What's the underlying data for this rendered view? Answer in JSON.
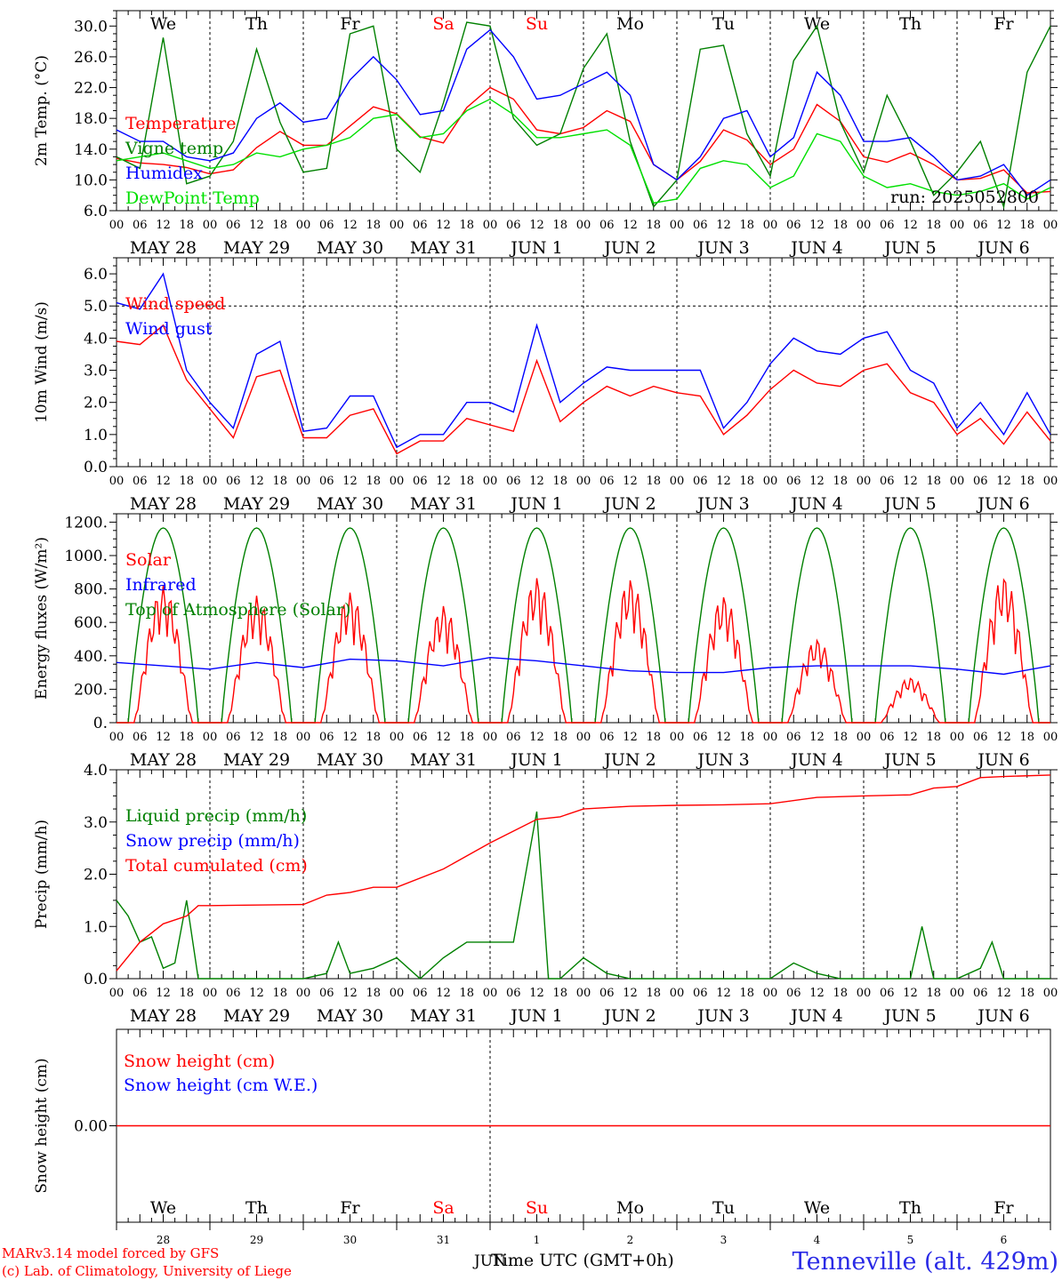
{
  "figure": {
    "location": "Tenneville (alt. 429m)",
    "footer_lines": [
      "MARv3.14 model forced by GFS",
      "(c) Lab. of Climatology, University of Liege"
    ],
    "xaxis_title": "Time UTC (GMT+0h)",
    "bottom_month": "JUN",
    "bottom_day_numbers": [
      "28",
      "29",
      "30",
      "31",
      "1",
      "2",
      "3",
      "4",
      "5",
      "6"
    ],
    "hour_ticks": [
      "00",
      "06",
      "12",
      "18"
    ],
    "end_tick": "00",
    "date_labels": [
      "MAY 28",
      "MAY 29",
      "MAY 30",
      "MAY 31",
      "JUN  1",
      "JUN  2",
      "JUN  3",
      "JUN  4",
      "JUN  5",
      "JUN  6"
    ],
    "weekday_labels": [
      {
        "label": "We",
        "color": "#000000"
      },
      {
        "label": "Th",
        "color": "#000000"
      },
      {
        "label": "Fr",
        "color": "#000000"
      },
      {
        "label": "Sa",
        "color": "#ff0000"
      },
      {
        "label": "Su",
        "color": "#ff0000"
      },
      {
        "label": "Mo",
        "color": "#000000"
      },
      {
        "label": "Tu",
        "color": "#000000"
      },
      {
        "label": "We",
        "color": "#000000"
      },
      {
        "label": "Th",
        "color": "#000000"
      },
      {
        "label": "Fr",
        "color": "#000000"
      }
    ]
  },
  "chart_data": [
    {
      "type": "line",
      "ylabel": "2m Temp. (°C)",
      "ylim": [
        6,
        32
      ],
      "yticks": [
        "6.0",
        "10.0",
        "14.0",
        "18.0",
        "22.0",
        "26.0",
        "30.0"
      ],
      "annotation": "run: 2025052800",
      "x_unit": "hours since 2025-05-28 00 UTC",
      "series": [
        {
          "name": "Temperature",
          "color": "#ff0000",
          "x": [
            0,
            6,
            12,
            18,
            24,
            30,
            36,
            42,
            48,
            54,
            60,
            66,
            72,
            78,
            84,
            90,
            96,
            102,
            108,
            114,
            120,
            126,
            132,
            138,
            144,
            150,
            156,
            162,
            168,
            174,
            180,
            186,
            192,
            198,
            204,
            210,
            216,
            222,
            228,
            234,
            240
          ],
          "values": [
            12.8,
            12.2,
            12.0,
            11.6,
            10.8,
            11.3,
            14.2,
            16.3,
            14.5,
            14.5,
            17.0,
            19.5,
            18.6,
            15.6,
            14.8,
            19.4,
            22.0,
            20.5,
            16.5,
            16.0,
            16.8,
            19.0,
            17.6,
            12.0,
            10.0,
            12.4,
            16.5,
            15.2,
            12.0,
            14.0,
            19.8,
            17.6,
            13.0,
            12.3,
            13.5,
            12.0,
            10.0,
            10.2,
            11.3,
            8.3,
            8.5
          ]
        },
        {
          "name": "Vigne temp",
          "color": "#008000",
          "x": [
            0,
            6,
            12,
            18,
            24,
            30,
            36,
            42,
            48,
            54,
            60,
            66,
            72,
            78,
            84,
            90,
            96,
            102,
            108,
            114,
            120,
            126,
            132,
            138,
            144,
            150,
            156,
            162,
            168,
            174,
            180,
            186,
            192,
            198,
            204,
            210,
            216,
            222,
            228,
            234,
            240
          ],
          "values": [
            13.0,
            11.5,
            28.5,
            9.5,
            10.5,
            15.0,
            27.0,
            17.5,
            11.0,
            11.5,
            29.0,
            30.0,
            14.0,
            11.0,
            20.0,
            30.5,
            30.0,
            18.0,
            14.5,
            16.0,
            24.5,
            29.0,
            15.0,
            6.5,
            10.0,
            27.0,
            27.5,
            16.0,
            10.5,
            25.5,
            30.0,
            17.5,
            11.0,
            21.0,
            15.0,
            8.0,
            11.0,
            15.0,
            6.5,
            24.0,
            30.0
          ]
        },
        {
          "name": "Humidex",
          "color": "#0000ff",
          "x": [
            0,
            6,
            12,
            18,
            24,
            30,
            36,
            42,
            48,
            54,
            60,
            66,
            72,
            78,
            84,
            90,
            96,
            102,
            108,
            114,
            120,
            126,
            132,
            138,
            144,
            150,
            156,
            162,
            168,
            174,
            180,
            186,
            192,
            198,
            204,
            210,
            216,
            222,
            228,
            234,
            240
          ],
          "values": [
            16.5,
            15.0,
            15.0,
            13.0,
            12.5,
            13.5,
            18.0,
            20.0,
            17.5,
            18.0,
            23.0,
            26.0,
            23.0,
            18.5,
            19.0,
            27.0,
            29.5,
            26.0,
            20.5,
            21.0,
            22.5,
            24.0,
            21.0,
            12.0,
            10.0,
            13.0,
            18.0,
            19.0,
            13.0,
            15.5,
            24.0,
            21.0,
            15.0,
            15.0,
            15.5,
            13.0,
            10.0,
            10.5,
            12.0,
            8.0,
            10.0
          ]
        },
        {
          "name": "DewPoint Temp",
          "color": "#00e000",
          "x": [
            0,
            6,
            12,
            18,
            24,
            30,
            36,
            42,
            48,
            54,
            60,
            66,
            72,
            78,
            84,
            90,
            96,
            102,
            108,
            114,
            120,
            126,
            132,
            138,
            144,
            150,
            156,
            162,
            168,
            174,
            180,
            186,
            192,
            198,
            204,
            210,
            216,
            222,
            228,
            234,
            240
          ],
          "values": [
            12.5,
            13.0,
            13.5,
            12.5,
            11.5,
            12.0,
            13.5,
            13.0,
            14.0,
            14.5,
            15.5,
            18.0,
            18.5,
            15.5,
            16.0,
            19.0,
            20.5,
            18.5,
            15.5,
            15.5,
            16.0,
            16.5,
            14.5,
            7.0,
            7.5,
            11.5,
            12.5,
            12.0,
            9.0,
            10.5,
            16.0,
            15.0,
            10.5,
            9.0,
            9.5,
            8.5,
            8.0,
            8.5,
            9.5,
            7.5,
            9.0
          ]
        }
      ]
    },
    {
      "type": "line",
      "ylabel": "10m Wind (m/s)",
      "ylim": [
        0,
        6.5
      ],
      "yticks": [
        "0.0",
        "1.0",
        "2.0",
        "3.0",
        "4.0",
        "5.0",
        "6.0"
      ],
      "x_unit": "hours since 2025-05-28 00 UTC",
      "series": [
        {
          "name": "Wind speed",
          "color": "#ff0000",
          "x": [
            0,
            6,
            12,
            18,
            24,
            30,
            36,
            42,
            48,
            54,
            60,
            66,
            72,
            78,
            84,
            90,
            96,
            102,
            108,
            114,
            120,
            126,
            132,
            138,
            144,
            150,
            156,
            162,
            168,
            174,
            180,
            186,
            192,
            198,
            204,
            210,
            216,
            222,
            228,
            234,
            240
          ],
          "values": [
            3.9,
            3.8,
            4.4,
            2.7,
            1.8,
            0.9,
            2.8,
            3.0,
            0.9,
            0.9,
            1.6,
            1.8,
            0.4,
            0.8,
            0.8,
            1.5,
            1.3,
            1.1,
            3.3,
            1.4,
            2.0,
            2.5,
            2.2,
            2.5,
            2.3,
            2.2,
            1.0,
            1.6,
            2.4,
            3.0,
            2.6,
            2.5,
            3.0,
            3.2,
            2.3,
            2.0,
            1.0,
            1.5,
            0.7,
            1.7,
            0.8
          ]
        },
        {
          "name": "Wind gust",
          "color": "#0000ff",
          "x": [
            0,
            6,
            12,
            18,
            24,
            30,
            36,
            42,
            48,
            54,
            60,
            66,
            72,
            78,
            84,
            90,
            96,
            102,
            108,
            114,
            120,
            126,
            132,
            138,
            144,
            150,
            156,
            162,
            168,
            174,
            180,
            186,
            192,
            198,
            204,
            210,
            216,
            222,
            228,
            234,
            240
          ],
          "values": [
            5.1,
            4.9,
            6.0,
            3.0,
            2.0,
            1.2,
            3.5,
            3.9,
            1.1,
            1.2,
            2.2,
            2.2,
            0.6,
            1.0,
            1.0,
            2.0,
            2.0,
            1.7,
            4.4,
            2.0,
            2.6,
            3.1,
            3.0,
            3.0,
            3.0,
            3.0,
            1.2,
            2.0,
            3.2,
            4.0,
            3.6,
            3.5,
            4.0,
            4.2,
            3.0,
            2.6,
            1.2,
            2.0,
            1.0,
            2.3,
            1.0
          ]
        }
      ]
    },
    {
      "type": "line",
      "ylabel": "Energy fluxes (W/m²)",
      "ylim": [
        0,
        1250
      ],
      "yticks": [
        "0.",
        "200.",
        "400.",
        "600.",
        "800.",
        "1000.",
        "1200."
      ],
      "x_unit": "hours since 2025-05-28 00 UTC",
      "series": [
        {
          "name": "Solar",
          "color": "#ff0000",
          "daily_peaks": [
            820,
            760,
            780,
            700,
            870,
            860,
            760,
            500,
            270,
            880
          ]
        },
        {
          "name": "Infrared",
          "color": "#0000ff",
          "x": [
            0,
            12,
            24,
            36,
            48,
            60,
            72,
            84,
            96,
            108,
            120,
            132,
            144,
            156,
            168,
            180,
            192,
            204,
            216,
            228,
            240
          ],
          "values": [
            360,
            340,
            320,
            360,
            330,
            380,
            370,
            340,
            390,
            370,
            340,
            310,
            300,
            300,
            330,
            340,
            340,
            340,
            320,
            290,
            340
          ]
        },
        {
          "name": "Top of Atmosphere (Solar)",
          "color": "#008000",
          "daily_peak": 1165
        }
      ]
    },
    {
      "type": "line",
      "ylabel": "Precip (mm/h)",
      "ylim": [
        0,
        4
      ],
      "yticks": [
        "0.0",
        "1.0",
        "2.0",
        "3.0",
        "4.0"
      ],
      "x_unit": "hours since 2025-05-28 00 UTC",
      "series": [
        {
          "name": "Liquid precip (mm/h)",
          "color": "#008000",
          "x": [
            0,
            3,
            6,
            9,
            12,
            15,
            18,
            21,
            24,
            48,
            54,
            57,
            60,
            66,
            72,
            78,
            84,
            90,
            96,
            102,
            108,
            111,
            114,
            120,
            126,
            132,
            144,
            168,
            174,
            180,
            186,
            192,
            204,
            207,
            210,
            216,
            222,
            225,
            228,
            240
          ],
          "values": [
            1.5,
            1.2,
            0.7,
            0.8,
            0.2,
            0.3,
            1.5,
            0,
            0,
            0,
            0.1,
            0.7,
            0.1,
            0.2,
            0.4,
            0,
            0.4,
            0.7,
            0.7,
            0.7,
            3.2,
            0,
            0,
            0.4,
            0.1,
            0,
            0,
            0,
            0.3,
            0.1,
            0,
            0,
            0,
            1.0,
            0,
            0,
            0.2,
            0.7,
            0,
            0
          ]
        },
        {
          "name": "Snow precip (mm/h)",
          "color": "#0000ff",
          "values": []
        },
        {
          "name": "Total cumulated (cm)",
          "color": "#ff0000",
          "x": [
            0,
            6,
            12,
            18,
            21,
            24,
            48,
            54,
            60,
            66,
            72,
            84,
            96,
            108,
            114,
            120,
            132,
            144,
            156,
            168,
            180,
            192,
            204,
            210,
            216,
            222,
            228,
            240
          ],
          "values": [
            0.15,
            0.7,
            1.05,
            1.2,
            1.4,
            1.4,
            1.42,
            1.6,
            1.65,
            1.75,
            1.75,
            2.1,
            2.6,
            3.05,
            3.1,
            3.25,
            3.3,
            3.32,
            3.33,
            3.35,
            3.47,
            3.5,
            3.52,
            3.65,
            3.68,
            3.85,
            3.87,
            3.9
          ]
        }
      ]
    },
    {
      "type": "line",
      "ylabel": "Snow height (cm)",
      "yticks": [
        "0.00"
      ],
      "series": [
        {
          "name": "Snow height (cm)",
          "color": "#ff0000",
          "values": [
            0,
            0
          ]
        },
        {
          "name": "Snow height (cm W.E.)",
          "color": "#0000ff",
          "values": []
        }
      ]
    }
  ]
}
